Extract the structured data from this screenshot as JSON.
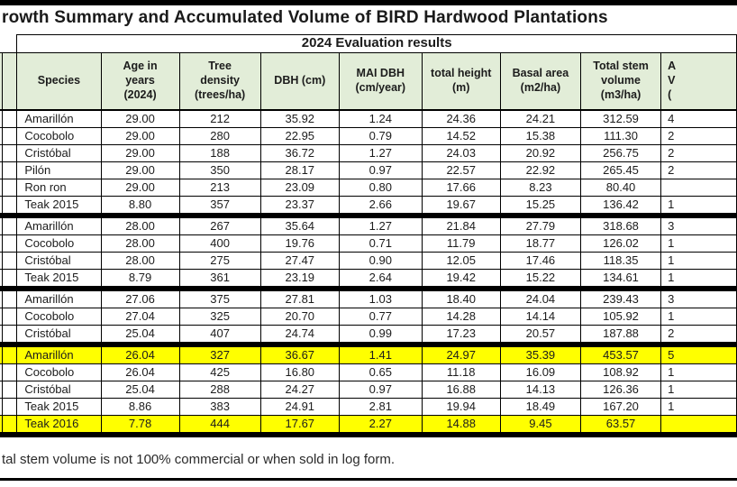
{
  "page": {
    "title": "rowth Summary and Accumulated Volume of BIRD Hardwood Plantations",
    "subtitle": "2024 Evaluation results",
    "footnote": "tal stem volume is not 100% commercial or when sold in log form."
  },
  "colors": {
    "header_bg": "#e2edd8",
    "highlight": "#ffff00",
    "border": "#000000"
  },
  "table": {
    "headers": [
      "",
      "",
      "Species",
      "Age in\nyears\n(2024)",
      "Tree\ndensity\n(trees/ha)",
      "DBH (cm)",
      "MAI DBH\n(cm/year)",
      "total height\n(m)",
      "Basal area\n(m2/ha)",
      "Total stem\nvolume\n(m3/ha)",
      "A\nV\n("
    ],
    "groups": [
      {
        "rows": [
          {
            "highlight": false,
            "cells": [
              "",
              "",
              "Amarillón",
              "29.00",
              "212",
              "35.92",
              "1.24",
              "24.36",
              "24.21",
              "312.59",
              "4"
            ]
          },
          {
            "highlight": false,
            "cells": [
              "",
              "",
              "Cocobolo",
              "29.00",
              "280",
              "22.95",
              "0.79",
              "14.52",
              "15.38",
              "111.30",
              "2"
            ]
          },
          {
            "highlight": false,
            "cells": [
              "",
              "",
              "Cristóbal",
              "29.00",
              "188",
              "36.72",
              "1.27",
              "24.03",
              "20.92",
              "256.75",
              "2"
            ]
          },
          {
            "highlight": false,
            "cells": [
              "",
              "",
              "Pilón",
              "29.00",
              "350",
              "28.17",
              "0.97",
              "22.57",
              "22.92",
              "265.45",
              "2"
            ]
          },
          {
            "highlight": false,
            "cells": [
              "",
              "",
              "Ron ron",
              "29.00",
              "213",
              "23.09",
              "0.80",
              "17.66",
              "8.23",
              "80.40",
              ""
            ]
          },
          {
            "highlight": false,
            "cells": [
              "",
              "",
              "Teak 2015",
              "8.80",
              "357",
              "23.37",
              "2.66",
              "19.67",
              "15.25",
              "136.42",
              "1"
            ]
          }
        ]
      },
      {
        "rows": [
          {
            "highlight": false,
            "cells": [
              "",
              "",
              "Amarillón",
              "28.00",
              "267",
              "35.64",
              "1.27",
              "21.84",
              "27.79",
              "318.68",
              "3"
            ]
          },
          {
            "highlight": false,
            "cells": [
              "",
              "",
              "Cocobolo",
              "28.00",
              "400",
              "19.76",
              "0.71",
              "11.79",
              "18.77",
              "126.02",
              "1"
            ]
          },
          {
            "highlight": false,
            "cells": [
              "",
              "",
              "Cristóbal",
              "28.00",
              "275",
              "27.47",
              "0.90",
              "12.05",
              "17.46",
              "118.35",
              "1"
            ]
          },
          {
            "highlight": false,
            "cells": [
              "",
              "",
              "Teak 2015",
              "8.79",
              "361",
              "23.19",
              "2.64",
              "19.42",
              "15.22",
              "134.61",
              "1"
            ]
          }
        ]
      },
      {
        "rows": [
          {
            "highlight": false,
            "cells": [
              "",
              "",
              "Amarillón",
              "27.06",
              "375",
              "27.81",
              "1.03",
              "18.40",
              "24.04",
              "239.43",
              "3"
            ]
          },
          {
            "highlight": false,
            "cells": [
              "",
              "",
              "Cocobolo",
              "27.04",
              "325",
              "20.70",
              "0.77",
              "14.28",
              "14.14",
              "105.92",
              "1"
            ]
          },
          {
            "highlight": false,
            "cells": [
              "",
              "",
              "Cristóbal",
              "25.04",
              "407",
              "24.74",
              "0.99",
              "17.23",
              "20.57",
              "187.88",
              "2"
            ]
          }
        ]
      },
      {
        "rows": [
          {
            "highlight": true,
            "cells": [
              "",
              "",
              "Amarillón",
              "26.04",
              "327",
              "36.67",
              "1.41",
              "24.97",
              "35.39",
              "453.57",
              "5"
            ]
          },
          {
            "highlight": false,
            "cells": [
              "",
              "",
              "Cocobolo",
              "26.04",
              "425",
              "16.80",
              "0.65",
              "11.18",
              "16.09",
              "108.92",
              "1"
            ]
          },
          {
            "highlight": false,
            "cells": [
              "",
              "",
              "Cristóbal",
              "25.04",
              "288",
              "24.27",
              "0.97",
              "16.88",
              "14.13",
              "126.36",
              "1"
            ]
          },
          {
            "highlight": false,
            "cells": [
              "",
              "",
              "Teak 2015",
              "8.86",
              "383",
              "24.91",
              "2.81",
              "19.94",
              "18.49",
              "167.20",
              "1"
            ]
          },
          {
            "highlight": true,
            "cells": [
              "",
              "",
              "Teak 2016",
              "7.78",
              "444",
              "17.67",
              "2.27",
              "14.88",
              "9.45",
              "63.57",
              ""
            ]
          }
        ]
      }
    ]
  }
}
